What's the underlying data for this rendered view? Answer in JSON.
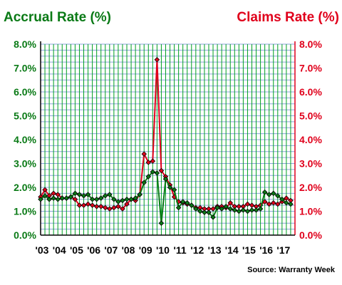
{
  "chart_data": {
    "type": "line",
    "left_title": "Accrual Rate (%)",
    "right_title": "Claims Rate (%)",
    "source": "Source: Warranty Week",
    "xlim": [
      2003.0,
      2017.75
    ],
    "ylim": [
      0,
      8
    ],
    "y_ticks": [
      "0.0%",
      "1.0%",
      "2.0%",
      "3.0%",
      "4.0%",
      "5.0%",
      "6.0%",
      "7.0%",
      "8.0%"
    ],
    "y_tick_values": [
      0,
      1,
      2,
      3,
      4,
      5,
      6,
      7,
      8
    ],
    "x_ticks": [
      "'03",
      "'04",
      "'05",
      "'06",
      "'07",
      "'08",
      "'09",
      "'10",
      "'11",
      "'12",
      "'13",
      "'14",
      "'15",
      "'16",
      "'17"
    ],
    "x_tick_values": [
      2003,
      2004,
      2005,
      2006,
      2007,
      2008,
      2009,
      2010,
      2011,
      2012,
      2013,
      2014,
      2015,
      2016,
      2017
    ],
    "grid": true,
    "colors": {
      "accrual": "#0a7a16",
      "claims": "#e0001b",
      "grid_v": "#00a020",
      "grid_h": "#8aa4d8",
      "axis": "#000000"
    },
    "series": [
      {
        "name": "Accrual Rate (%)",
        "axis": "left",
        "x": [
          2003.0,
          2003.25,
          2003.5,
          2003.75,
          2004.0,
          2004.25,
          2004.5,
          2004.75,
          2005.0,
          2005.25,
          2005.5,
          2005.75,
          2006.0,
          2006.25,
          2006.5,
          2006.75,
          2007.0,
          2007.25,
          2007.5,
          2007.75,
          2008.0,
          2008.25,
          2008.5,
          2008.75,
          2009.0,
          2009.25,
          2009.5,
          2009.75,
          2010.0,
          2010.25,
          2010.5,
          2010.75,
          2011.0,
          2011.25,
          2011.5,
          2011.75,
          2012.0,
          2012.25,
          2012.5,
          2012.75,
          2013.0,
          2013.25,
          2013.5,
          2013.75,
          2014.0,
          2014.25,
          2014.5,
          2014.75,
          2015.0,
          2015.25,
          2015.5,
          2015.75,
          2016.0,
          2016.25,
          2016.5,
          2016.75,
          2017.0,
          2017.25,
          2017.5
        ],
        "values": [
          1.5,
          1.65,
          1.5,
          1.55,
          1.5,
          1.55,
          1.55,
          1.6,
          1.75,
          1.7,
          1.65,
          1.7,
          1.5,
          1.5,
          1.55,
          1.65,
          1.7,
          1.5,
          1.4,
          1.45,
          1.5,
          1.5,
          1.55,
          1.7,
          2.2,
          2.45,
          2.65,
          2.6,
          0.5,
          2.35,
          2.0,
          1.9,
          1.15,
          1.4,
          1.35,
          1.25,
          1.1,
          1.0,
          0.95,
          0.95,
          0.75,
          1.15,
          1.1,
          1.2,
          1.1,
          1.05,
          1.0,
          1.05,
          1.0,
          1.05,
          1.05,
          1.1,
          1.8,
          1.7,
          1.75,
          1.65,
          1.5,
          1.35,
          1.3
        ]
      },
      {
        "name": "Claims Rate (%)",
        "axis": "right",
        "x": [
          2003.0,
          2003.25,
          2003.5,
          2003.75,
          2004.0,
          2004.25,
          2004.5,
          2004.75,
          2005.0,
          2005.25,
          2005.5,
          2005.75,
          2006.0,
          2006.25,
          2006.5,
          2006.75,
          2007.0,
          2007.25,
          2007.5,
          2007.75,
          2008.0,
          2008.25,
          2008.5,
          2008.75,
          2009.0,
          2009.25,
          2009.5,
          2009.75,
          2010.0,
          2010.25,
          2010.5,
          2010.75,
          2011.0,
          2011.25,
          2011.5,
          2011.75,
          2012.0,
          2012.25,
          2012.5,
          2012.75,
          2013.0,
          2013.25,
          2013.5,
          2013.75,
          2014.0,
          2014.25,
          2014.5,
          2014.75,
          2015.0,
          2015.25,
          2015.5,
          2015.75,
          2016.0,
          2016.25,
          2016.5,
          2016.75,
          2017.0,
          2017.25,
          2017.5
        ],
        "values": [
          1.6,
          1.9,
          1.65,
          1.75,
          1.7,
          1.55,
          1.55,
          1.6,
          1.5,
          1.25,
          1.25,
          1.3,
          1.25,
          1.2,
          1.2,
          1.15,
          1.1,
          1.15,
          1.2,
          1.1,
          1.3,
          1.5,
          1.45,
          1.7,
          3.4,
          3.05,
          3.1,
          7.35,
          2.7,
          2.45,
          2.1,
          1.6,
          1.4,
          1.35,
          1.3,
          1.25,
          1.15,
          1.15,
          1.1,
          1.1,
          1.1,
          1.2,
          1.2,
          1.15,
          1.35,
          1.2,
          1.2,
          1.2,
          1.3,
          1.25,
          1.2,
          1.25,
          1.4,
          1.3,
          1.35,
          1.3,
          1.4,
          1.55,
          1.45
        ]
      }
    ]
  }
}
